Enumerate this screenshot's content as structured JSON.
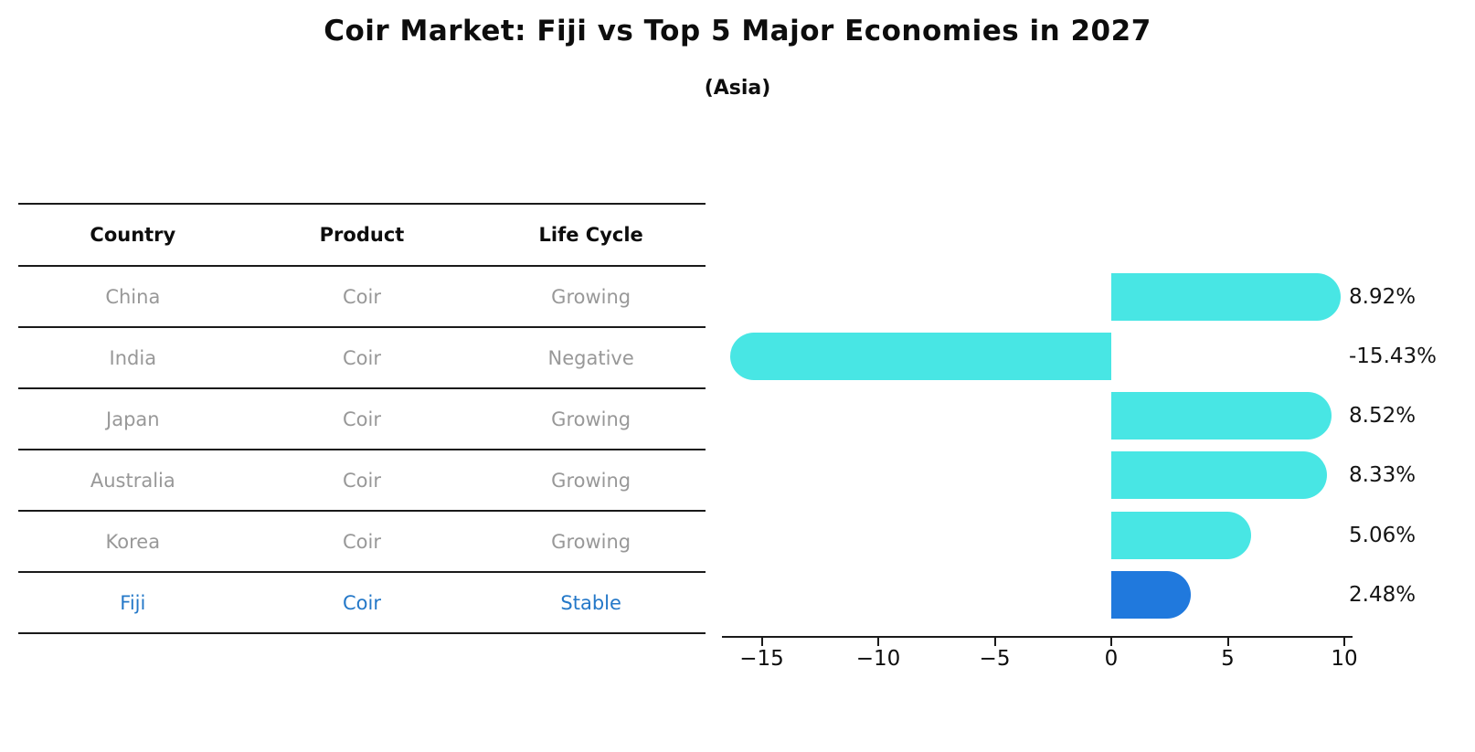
{
  "title": "Coir Market: Fiji vs Top 5 Major Economies in 2027",
  "subtitle": "(Asia)",
  "table": {
    "headers": [
      "Country",
      "Product",
      "Life Cycle"
    ],
    "rows": [
      {
        "country": "China",
        "product": "Coir",
        "life_cycle": "Growing",
        "highlight": false
      },
      {
        "country": "India",
        "product": "Coir",
        "life_cycle": "Negative",
        "highlight": false
      },
      {
        "country": "Japan",
        "product": "Coir",
        "life_cycle": "Growing",
        "highlight": false
      },
      {
        "country": "Australia",
        "product": "Coir",
        "life_cycle": "Growing",
        "highlight": false
      },
      {
        "country": "Korea",
        "product": "Coir",
        "life_cycle": "Growing",
        "highlight": false
      },
      {
        "country": "Fiji",
        "product": "Coir",
        "life_cycle": "Stable",
        "highlight": true
      }
    ]
  },
  "chart_data": {
    "type": "bar",
    "orientation": "horizontal",
    "categories": [
      "China",
      "India",
      "Japan",
      "Australia",
      "Korea",
      "Fiji"
    ],
    "values": [
      8.92,
      -15.43,
      8.52,
      8.33,
      5.06,
      2.48
    ],
    "value_labels": [
      "8.92%",
      "-15.43%",
      "8.52%",
      "8.33%",
      "5.06%",
      "2.48%"
    ],
    "x_ticks": [
      -15,
      -10,
      -5,
      0,
      5,
      10
    ],
    "x_tick_labels": [
      "−15",
      "−10",
      "−5",
      "0",
      "5",
      "10"
    ],
    "xlim": [
      -16.7,
      10.3
    ],
    "grid": false,
    "legend": "none",
    "highlight_index": 5,
    "title": "Coir Market: Fiji vs Top 5 Major Economies in 2027",
    "subtitle": "(Asia)",
    "xlabel": "",
    "ylabel": ""
  },
  "colors": {
    "bar_default": "#48e6e4",
    "bar_highlight": "#2079dd",
    "highlight_text": "#2478c8",
    "table_text": "#989898",
    "heading_text": "#0d0d0d",
    "axis": "#1a1a1a"
  }
}
